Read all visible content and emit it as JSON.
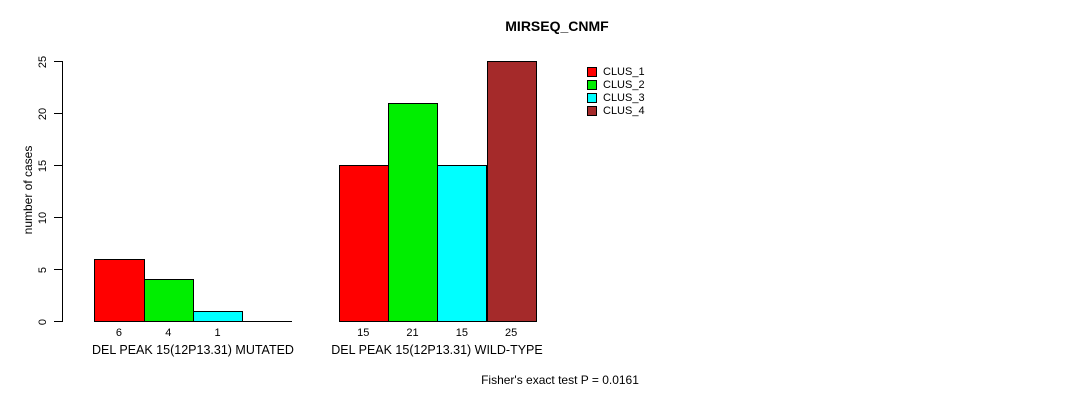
{
  "title": "MIRSEQ_CNMF",
  "chart_data": {
    "type": "bar",
    "title": "MIRSEQ_CNMF",
    "xlabel": "",
    "ylabel": "number of cases",
    "ylim": [
      0,
      25
    ],
    "yticks": [
      0,
      5,
      10,
      15,
      20,
      25
    ],
    "grid": false,
    "legend_position": "top-right",
    "categories": [
      "DEL PEAK 15(12P13.31) MUTATED",
      "DEL PEAK 15(12P13.31) WILD-TYPE"
    ],
    "series": [
      {
        "name": "CLUS_1",
        "color": "#ff0000",
        "values": [
          6,
          15
        ]
      },
      {
        "name": "CLUS_2",
        "color": "#00ee00",
        "values": [
          4,
          21
        ]
      },
      {
        "name": "CLUS_3",
        "color": "#00ffff",
        "values": [
          1,
          15
        ]
      },
      {
        "name": "CLUS_4",
        "color": "#a52a2a",
        "values": [
          0,
          25
        ]
      }
    ],
    "show_bar_value_labels": true,
    "zero_bars_hidden": true,
    "annotation": "Fisher's exact test P = 0.0161"
  }
}
